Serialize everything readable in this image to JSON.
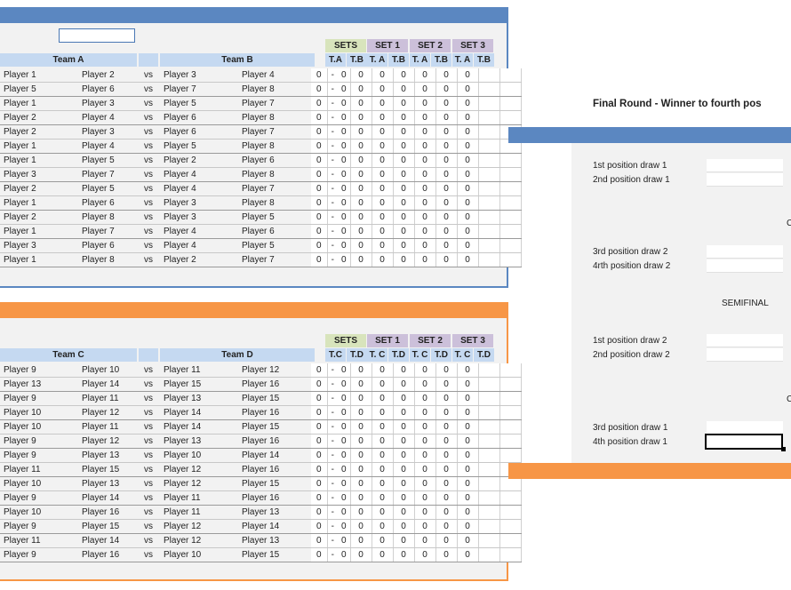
{
  "groupA": {
    "team_left": "Team A",
    "team_right": "Team B",
    "sets_label": "SETS",
    "set_labels": [
      "SET 1",
      "SET 2",
      "SET 3"
    ],
    "score_cols": [
      "T.A",
      "T.B",
      "T. A",
      "T.B",
      "T. A",
      "T.B",
      "T. A",
      "T.B"
    ],
    "vs": "vs",
    "dash": "-",
    "matches": [
      [
        "Player 1",
        "Player 2",
        "Player 3",
        "Player 4"
      ],
      [
        "Player 5",
        "Player 6",
        "Player 7",
        "Player 8"
      ],
      [
        "Player 1",
        "Player 3",
        "Player 5",
        "Player 7"
      ],
      [
        "Player 2",
        "Player 4",
        "Player 6",
        "Player 8"
      ],
      [
        "Player 2",
        "Player 3",
        "Player 6",
        "Player 7"
      ],
      [
        "Player 1",
        "Player 4",
        "Player 5",
        "Player 8"
      ],
      [
        "Player 1",
        "Player 5",
        "Player 2",
        "Player 6"
      ],
      [
        "Player 3",
        "Player 7",
        "Player 4",
        "Player 8"
      ],
      [
        "Player 2",
        "Player 5",
        "Player 4",
        "Player 7"
      ],
      [
        "Player 1",
        "Player 6",
        "Player 3",
        "Player 8"
      ],
      [
        "Player 2",
        "Player 8",
        "Player 3",
        "Player 5"
      ],
      [
        "Player 1",
        "Player 7",
        "Player 4",
        "Player 6"
      ],
      [
        "Player 3",
        "Player 6",
        "Player 4",
        "Player 5"
      ],
      [
        "Player 1",
        "Player 8",
        "Player 2",
        "Player 7"
      ]
    ],
    "score_value": "0"
  },
  "groupC": {
    "team_left": "Team C",
    "team_right": "Team D",
    "sets_label": "SETS",
    "set_labels": [
      "SET 1",
      "SET 2",
      "SET 3"
    ],
    "score_cols": [
      "T.C",
      "T.D",
      "T. C",
      "T.D",
      "T. C",
      "T.D",
      "T. C",
      "T.D"
    ],
    "vs": "vs",
    "dash": "-",
    "matches": [
      [
        "Player 9",
        "Player 10",
        "Player 11",
        "Player 12"
      ],
      [
        "Player 13",
        "Player 14",
        "Player 15",
        "Player 16"
      ],
      [
        "Player 9",
        "Player 11",
        "Player 13",
        "Player 15"
      ],
      [
        "Player 10",
        "Player 12",
        "Player 14",
        "Player 16"
      ],
      [
        "Player 10",
        "Player 11",
        "Player 14",
        "Player 15"
      ],
      [
        "Player 9",
        "Player 12",
        "Player 13",
        "Player 16"
      ],
      [
        "Player 9",
        "Player 13",
        "Player 10",
        "Player 14"
      ],
      [
        "Player 11",
        "Player 15",
        "Player 12",
        "Player 16"
      ],
      [
        "Player 10",
        "Player 13",
        "Player 12",
        "Player 15"
      ],
      [
        "Player 9",
        "Player 14",
        "Player 11",
        "Player 16"
      ],
      [
        "Player 10",
        "Player 16",
        "Player 11",
        "Player 13"
      ],
      [
        "Player 9",
        "Player 15",
        "Player 12",
        "Player 14"
      ],
      [
        "Player 11",
        "Player 14",
        "Player 12",
        "Player 13"
      ],
      [
        "Player 9",
        "Player 16",
        "Player 10",
        "Player 15"
      ]
    ],
    "score_value": "0"
  },
  "final": {
    "title": "Final Round - Winner to fourth pos",
    "labels": [
      "1st position draw 1",
      "2nd position draw 1",
      "3rd position draw 2",
      "4rth position draw 2",
      "1st position draw 2",
      "2nd position draw 2",
      "3rd position draw 1",
      "4th position draw 1"
    ],
    "semifinal": "SEMIFINAL",
    "clipped_glyph": "C"
  },
  "colors": {
    "blue": "#5b87c1",
    "orange": "#f79646",
    "sets": "#d8e4bc",
    "set": "#ccc0da",
    "team": "#c5d9f1"
  }
}
